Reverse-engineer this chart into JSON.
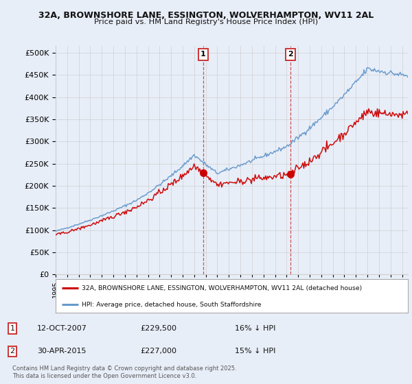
{
  "title1": "32A, BROWNSHORE LANE, ESSINGTON, WOLVERHAMPTON, WV11 2AL",
  "title2": "Price paid vs. HM Land Registry's House Price Index (HPI)",
  "ytick_values": [
    0,
    50000,
    100000,
    150000,
    200000,
    250000,
    300000,
    350000,
    400000,
    450000,
    500000
  ],
  "ylim": [
    0,
    515000
  ],
  "xlim_start": 1995.0,
  "xlim_end": 2025.5,
  "sale1_x": 2007.78,
  "sale1_y": 229500,
  "sale2_x": 2015.33,
  "sale2_y": 227000,
  "sale1_label": "12-OCT-2007",
  "sale1_price": "£229,500",
  "sale1_hpi": "16% ↓ HPI",
  "sale2_label": "30-APR-2015",
  "sale2_price": "£227,000",
  "sale2_hpi": "15% ↓ HPI",
  "legend_red": "32A, BROWNSHORE LANE, ESSINGTON, WOLVERHAMPTON, WV11 2AL (detached house)",
  "legend_blue": "HPI: Average price, detached house, South Staffordshire",
  "footer": "Contains HM Land Registry data © Crown copyright and database right 2025.\nThis data is licensed under the Open Government Licence v3.0.",
  "bg_color": "#e8eef8",
  "red_color": "#cc0000",
  "blue_color": "#6699cc",
  "vline_color": "#cc3333",
  "grid_color": "#cccccc",
  "xticks": [
    1995,
    1996,
    1997,
    1998,
    1999,
    2000,
    2001,
    2002,
    2003,
    2004,
    2005,
    2006,
    2007,
    2008,
    2009,
    2010,
    2011,
    2012,
    2013,
    2014,
    2015,
    2016,
    2017,
    2018,
    2019,
    2020,
    2021,
    2022,
    2023,
    2024,
    2025
  ],
  "n_points": 370,
  "steps_per_year": 12
}
